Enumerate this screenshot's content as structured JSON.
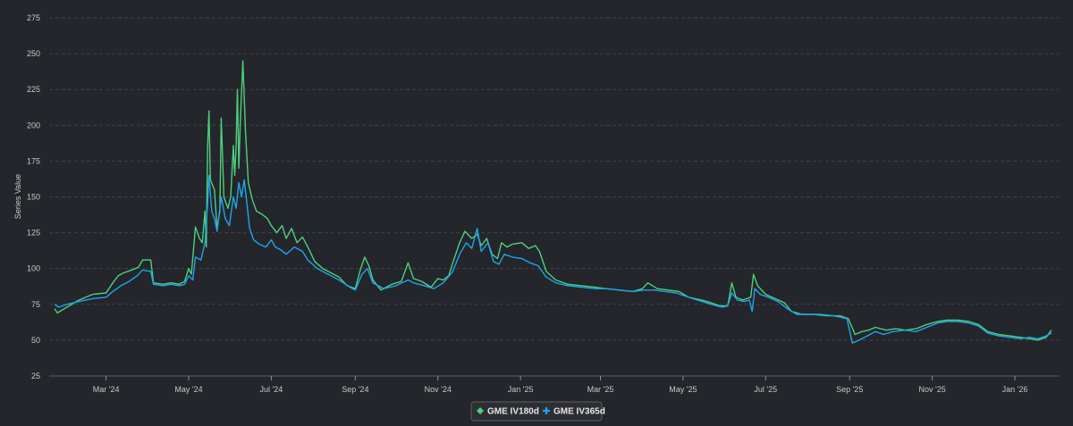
{
  "chart_data": {
    "type": "line",
    "title": "",
    "xlabel": "",
    "ylabel": "Series Value",
    "ylim": [
      25,
      275
    ],
    "yticks": [
      25,
      50,
      75,
      100,
      125,
      150,
      175,
      200,
      225,
      250,
      275
    ],
    "xlim": [
      "2024-01-19",
      "2026-02-03"
    ],
    "xticks": [
      {
        "date": "2024-03-01",
        "label": "Mar '24"
      },
      {
        "date": "2024-05-01",
        "label": "May '24"
      },
      {
        "date": "2024-07-01",
        "label": "Jul '24"
      },
      {
        "date": "2024-09-01",
        "label": "Sep '24"
      },
      {
        "date": "2024-11-01",
        "label": "Nov '24"
      },
      {
        "date": "2025-01-01",
        "label": "Jan '25"
      },
      {
        "date": "2025-03-01",
        "label": "Mar '25"
      },
      {
        "date": "2025-05-01",
        "label": "May '25"
      },
      {
        "date": "2025-07-01",
        "label": "Jul '25"
      },
      {
        "date": "2025-09-01",
        "label": "Sep '25"
      },
      {
        "date": "2025-11-01",
        "label": "Nov '25"
      },
      {
        "date": "2026-01-01",
        "label": "Jan '26"
      }
    ],
    "grid": true,
    "legend_position": "bottom-center",
    "series": [
      {
        "name": "GME IV180d",
        "color": "#4cd07d",
        "points": [
          [
            "2024-01-23",
            72
          ],
          [
            "2024-01-25",
            69
          ],
          [
            "2024-02-01",
            73
          ],
          [
            "2024-02-10",
            78
          ],
          [
            "2024-02-20",
            82
          ],
          [
            "2024-03-01",
            83
          ],
          [
            "2024-03-06",
            90
          ],
          [
            "2024-03-10",
            95
          ],
          [
            "2024-03-14",
            97
          ],
          [
            "2024-03-20",
            99
          ],
          [
            "2024-03-25",
            101
          ],
          [
            "2024-03-28",
            106
          ],
          [
            "2024-04-03",
            106
          ],
          [
            "2024-04-05",
            90
          ],
          [
            "2024-04-12",
            89
          ],
          [
            "2024-04-18",
            90
          ],
          [
            "2024-04-24",
            89
          ],
          [
            "2024-04-28",
            91
          ],
          [
            "2024-05-01",
            100
          ],
          [
            "2024-05-03",
            96
          ],
          [
            "2024-05-06",
            129
          ],
          [
            "2024-05-09",
            121
          ],
          [
            "2024-05-11",
            118
          ],
          [
            "2024-05-13",
            140
          ],
          [
            "2024-05-14",
            115
          ],
          [
            "2024-05-15",
            185
          ],
          [
            "2024-05-16",
            210
          ],
          [
            "2024-05-17",
            162
          ],
          [
            "2024-05-20",
            155
          ],
          [
            "2024-05-22",
            128
          ],
          [
            "2024-05-24",
            140
          ],
          [
            "2024-05-25",
            205
          ],
          [
            "2024-05-27",
            150
          ],
          [
            "2024-05-30",
            142
          ],
          [
            "2024-06-01",
            150
          ],
          [
            "2024-06-03",
            186
          ],
          [
            "2024-06-04",
            165
          ],
          [
            "2024-06-05",
            184
          ],
          [
            "2024-06-06",
            225
          ],
          [
            "2024-06-07",
            170
          ],
          [
            "2024-06-08",
            200
          ],
          [
            "2024-06-10",
            245
          ],
          [
            "2024-06-12",
            195
          ],
          [
            "2024-06-14",
            160
          ],
          [
            "2024-06-17",
            148
          ],
          [
            "2024-06-20",
            140
          ],
          [
            "2024-06-24",
            138
          ],
          [
            "2024-06-28",
            135
          ],
          [
            "2024-07-01",
            130
          ],
          [
            "2024-07-05",
            125
          ],
          [
            "2024-07-09",
            130
          ],
          [
            "2024-07-12",
            121
          ],
          [
            "2024-07-16",
            128
          ],
          [
            "2024-07-20",
            118
          ],
          [
            "2024-07-24",
            122
          ],
          [
            "2024-07-28",
            115
          ],
          [
            "2024-08-02",
            105
          ],
          [
            "2024-08-08",
            100
          ],
          [
            "2024-08-14",
            97
          ],
          [
            "2024-08-20",
            94
          ],
          [
            "2024-08-26",
            88
          ],
          [
            "2024-09-01",
            86
          ],
          [
            "2024-09-05",
            100
          ],
          [
            "2024-09-08",
            108
          ],
          [
            "2024-09-11",
            102
          ],
          [
            "2024-09-14",
            92
          ],
          [
            "2024-09-20",
            85
          ],
          [
            "2024-09-28",
            89
          ],
          [
            "2024-10-05",
            91
          ],
          [
            "2024-10-10",
            104
          ],
          [
            "2024-10-14",
            93
          ],
          [
            "2024-10-20",
            91
          ],
          [
            "2024-10-27",
            87
          ],
          [
            "2024-11-01",
            93
          ],
          [
            "2024-11-05",
            92
          ],
          [
            "2024-11-09",
            95
          ],
          [
            "2024-11-12",
            104
          ],
          [
            "2024-11-17",
            118
          ],
          [
            "2024-11-21",
            126
          ],
          [
            "2024-11-26",
            121
          ],
          [
            "2024-11-30",
            124
          ],
          [
            "2024-12-03",
            116
          ],
          [
            "2024-12-07",
            121
          ],
          [
            "2024-12-11",
            110
          ],
          [
            "2024-12-15",
            107
          ],
          [
            "2024-12-18",
            118
          ],
          [
            "2024-12-22",
            115
          ],
          [
            "2024-12-26",
            117
          ],
          [
            "2025-01-02",
            118
          ],
          [
            "2025-01-07",
            114
          ],
          [
            "2025-01-12",
            116
          ],
          [
            "2025-01-15",
            112
          ],
          [
            "2025-01-20",
            98
          ],
          [
            "2025-01-27",
            92
          ],
          [
            "2025-02-05",
            89
          ],
          [
            "2025-02-15",
            88
          ],
          [
            "2025-02-25",
            87
          ],
          [
            "2025-03-05",
            86
          ],
          [
            "2025-03-15",
            85
          ],
          [
            "2025-03-25",
            84
          ],
          [
            "2025-04-01",
            86
          ],
          [
            "2025-04-05",
            90
          ],
          [
            "2025-04-12",
            86
          ],
          [
            "2025-04-20",
            85
          ],
          [
            "2025-04-28",
            84
          ],
          [
            "2025-05-05",
            80
          ],
          [
            "2025-05-15",
            78
          ],
          [
            "2025-05-22",
            76
          ],
          [
            "2025-05-28",
            74
          ],
          [
            "2025-06-03",
            74
          ],
          [
            "2025-06-06",
            90
          ],
          [
            "2025-06-09",
            80
          ],
          [
            "2025-06-14",
            78
          ],
          [
            "2025-06-20",
            80
          ],
          [
            "2025-06-22",
            96
          ],
          [
            "2025-06-25",
            88
          ],
          [
            "2025-07-01",
            82
          ],
          [
            "2025-07-08",
            79
          ],
          [
            "2025-07-15",
            76
          ],
          [
            "2025-07-20",
            70
          ],
          [
            "2025-07-28",
            68
          ],
          [
            "2025-08-05",
            68
          ],
          [
            "2025-08-15",
            67
          ],
          [
            "2025-08-25",
            67
          ],
          [
            "2025-08-31",
            65
          ],
          [
            "2025-09-05",
            54
          ],
          [
            "2025-09-10",
            56
          ],
          [
            "2025-09-15",
            57
          ],
          [
            "2025-09-20",
            59
          ],
          [
            "2025-09-28",
            57
          ],
          [
            "2025-10-05",
            58
          ],
          [
            "2025-10-12",
            57
          ],
          [
            "2025-10-20",
            58
          ],
          [
            "2025-10-28",
            61
          ],
          [
            "2025-11-05",
            63
          ],
          [
            "2025-11-12",
            64
          ],
          [
            "2025-11-20",
            64
          ],
          [
            "2025-11-28",
            63
          ],
          [
            "2025-12-05",
            61
          ],
          [
            "2025-12-12",
            56
          ],
          [
            "2025-12-20",
            54
          ],
          [
            "2025-12-28",
            53
          ],
          [
            "2026-01-05",
            52
          ],
          [
            "2026-01-12",
            51
          ],
          [
            "2026-01-18",
            50
          ],
          [
            "2026-01-24",
            52
          ],
          [
            "2026-01-28",
            57
          ]
        ]
      },
      {
        "name": "GME IV365d",
        "color": "#1fa5e8",
        "points": [
          [
            "2024-01-23",
            75
          ],
          [
            "2024-01-26",
            73
          ],
          [
            "2024-02-01",
            75
          ],
          [
            "2024-02-10",
            77
          ],
          [
            "2024-02-20",
            79
          ],
          [
            "2024-03-01",
            80
          ],
          [
            "2024-03-06",
            84
          ],
          [
            "2024-03-12",
            88
          ],
          [
            "2024-03-18",
            91
          ],
          [
            "2024-03-24",
            95
          ],
          [
            "2024-03-28",
            99
          ],
          [
            "2024-04-03",
            98
          ],
          [
            "2024-04-05",
            89
          ],
          [
            "2024-04-12",
            88
          ],
          [
            "2024-04-18",
            89
          ],
          [
            "2024-04-24",
            88
          ],
          [
            "2024-04-28",
            89
          ],
          [
            "2024-05-01",
            95
          ],
          [
            "2024-05-04",
            92
          ],
          [
            "2024-05-06",
            108
          ],
          [
            "2024-05-10",
            106
          ],
          [
            "2024-05-13",
            118
          ],
          [
            "2024-05-15",
            145
          ],
          [
            "2024-05-16",
            165
          ],
          [
            "2024-05-18",
            140
          ],
          [
            "2024-05-20",
            135
          ],
          [
            "2024-05-22",
            126
          ],
          [
            "2024-05-25",
            150
          ],
          [
            "2024-05-28",
            135
          ],
          [
            "2024-05-31",
            130
          ],
          [
            "2024-06-03",
            150
          ],
          [
            "2024-06-05",
            142
          ],
          [
            "2024-06-07",
            160
          ],
          [
            "2024-06-09",
            150
          ],
          [
            "2024-06-11",
            162
          ],
          [
            "2024-06-13",
            145
          ],
          [
            "2024-06-15",
            128
          ],
          [
            "2024-06-18",
            120
          ],
          [
            "2024-06-22",
            117
          ],
          [
            "2024-06-27",
            115
          ],
          [
            "2024-07-01",
            120
          ],
          [
            "2024-07-04",
            115
          ],
          [
            "2024-07-08",
            113
          ],
          [
            "2024-07-12",
            110
          ],
          [
            "2024-07-18",
            115
          ],
          [
            "2024-07-24",
            112
          ],
          [
            "2024-07-28",
            106
          ],
          [
            "2024-08-04",
            100
          ],
          [
            "2024-08-12",
            96
          ],
          [
            "2024-08-20",
            92
          ],
          [
            "2024-08-28",
            87
          ],
          [
            "2024-09-01",
            85
          ],
          [
            "2024-09-06",
            96
          ],
          [
            "2024-09-10",
            100
          ],
          [
            "2024-09-14",
            90
          ],
          [
            "2024-09-22",
            86
          ],
          [
            "2024-10-01",
            88
          ],
          [
            "2024-10-10",
            92
          ],
          [
            "2024-10-14",
            90
          ],
          [
            "2024-10-22",
            88
          ],
          [
            "2024-10-29",
            86
          ],
          [
            "2024-11-05",
            90
          ],
          [
            "2024-11-12",
            98
          ],
          [
            "2024-11-17",
            110
          ],
          [
            "2024-11-22",
            118
          ],
          [
            "2024-11-26",
            114
          ],
          [
            "2024-11-30",
            128
          ],
          [
            "2024-12-03",
            112
          ],
          [
            "2024-12-08",
            118
          ],
          [
            "2024-12-12",
            105
          ],
          [
            "2024-12-16",
            103
          ],
          [
            "2024-12-20",
            110
          ],
          [
            "2024-12-26",
            108
          ],
          [
            "2025-01-02",
            107
          ],
          [
            "2025-01-08",
            104
          ],
          [
            "2025-01-14",
            102
          ],
          [
            "2025-01-20",
            94
          ],
          [
            "2025-01-27",
            90
          ],
          [
            "2025-02-05",
            88
          ],
          [
            "2025-02-15",
            87
          ],
          [
            "2025-02-25",
            86
          ],
          [
            "2025-03-05",
            86
          ],
          [
            "2025-03-15",
            85
          ],
          [
            "2025-03-25",
            84
          ],
          [
            "2025-04-02",
            85
          ],
          [
            "2025-04-10",
            85
          ],
          [
            "2025-04-18",
            84
          ],
          [
            "2025-04-26",
            83
          ],
          [
            "2025-05-05",
            80
          ],
          [
            "2025-05-15",
            77
          ],
          [
            "2025-05-22",
            75
          ],
          [
            "2025-05-30",
            73
          ],
          [
            "2025-06-03",
            74
          ],
          [
            "2025-06-06",
            83
          ],
          [
            "2025-06-10",
            78
          ],
          [
            "2025-06-15",
            77
          ],
          [
            "2025-06-19",
            78
          ],
          [
            "2025-06-21",
            70
          ],
          [
            "2025-06-23",
            86
          ],
          [
            "2025-06-27",
            82
          ],
          [
            "2025-07-03",
            80
          ],
          [
            "2025-07-10",
            77
          ],
          [
            "2025-07-17",
            72
          ],
          [
            "2025-07-24",
            68
          ],
          [
            "2025-07-31",
            68
          ],
          [
            "2025-08-10",
            68
          ],
          [
            "2025-08-20",
            67
          ],
          [
            "2025-08-30",
            65
          ],
          [
            "2025-09-03",
            48
          ],
          [
            "2025-09-08",
            50
          ],
          [
            "2025-09-14",
            53
          ],
          [
            "2025-09-20",
            56
          ],
          [
            "2025-09-26",
            54
          ],
          [
            "2025-10-03",
            56
          ],
          [
            "2025-10-12",
            57
          ],
          [
            "2025-10-20",
            56
          ],
          [
            "2025-10-28",
            59
          ],
          [
            "2025-11-05",
            62
          ],
          [
            "2025-11-12",
            63
          ],
          [
            "2025-11-20",
            63
          ],
          [
            "2025-11-28",
            62
          ],
          [
            "2025-12-05",
            60
          ],
          [
            "2025-12-12",
            55
          ],
          [
            "2025-12-20",
            53
          ],
          [
            "2025-12-28",
            52
          ],
          [
            "2026-01-05",
            51
          ],
          [
            "2026-01-12",
            52
          ],
          [
            "2026-01-18",
            51
          ],
          [
            "2026-01-24",
            53
          ],
          [
            "2026-01-28",
            55
          ]
        ]
      }
    ]
  }
}
